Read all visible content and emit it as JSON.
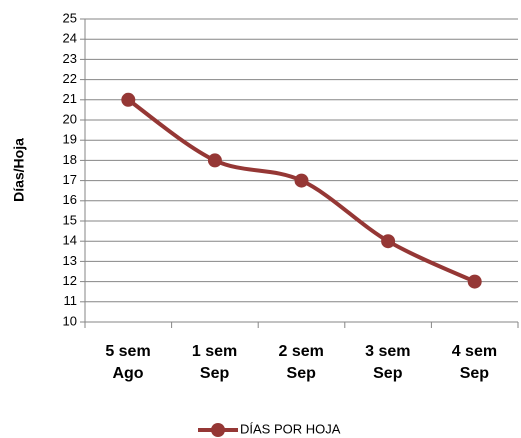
{
  "chart_data": {
    "type": "line",
    "y_label": "Días/Hoja",
    "categories": [
      "5 sem\nAgo",
      "1 sem\nSep",
      "2 sem\nSep",
      "3 sem\nSep",
      "4 sem\nSep"
    ],
    "series": [
      {
        "name": "DÍAS POR HOJA",
        "color": "#953735",
        "values": [
          21,
          18,
          17,
          14,
          12
        ]
      }
    ],
    "ylim": [
      10,
      25
    ],
    "yticks": [
      10,
      11,
      12,
      13,
      14,
      15,
      16,
      17,
      18,
      19,
      20,
      21,
      22,
      23,
      24,
      25
    ],
    "grid": true,
    "smooth": true,
    "legend": "bottom"
  }
}
